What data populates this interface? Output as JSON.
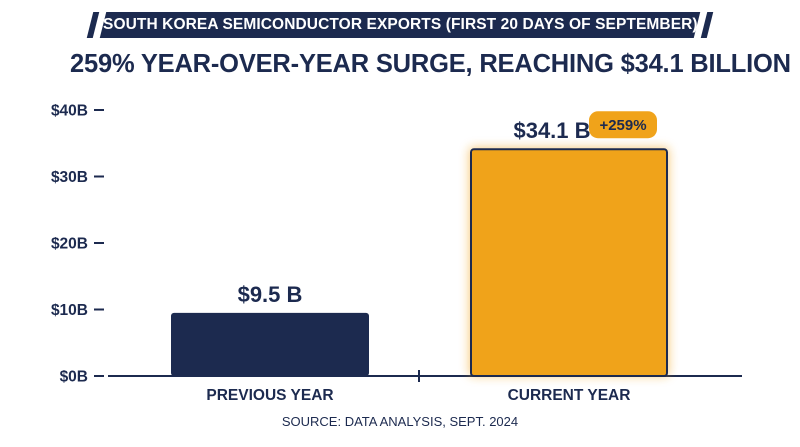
{
  "title": "SOUTH KOREA SEMICONDUCTOR EXPORTS (FIRST 20 DAYS OF SEPTEMBER)",
  "subtitle": "259% YEAR-OVER-YEAR SURGE, REACHING $34.1 BILLION",
  "source": "SOURCE: DATA ANALYSIS, SEPT. 2024",
  "colors": {
    "navy": "#1c2a4f",
    "orange": "#f0a31a",
    "badge": "#f0a31a"
  },
  "icons": {
    "headline": "trend-up-arrow-icon"
  },
  "chart_data": {
    "type": "bar",
    "categories": [
      "PREVIOUS YEAR",
      "CURRENT YEAR"
    ],
    "values": [
      9.5,
      34.1
    ],
    "value_labels": [
      "$9.5 B",
      "$34.1 B"
    ],
    "bar_colors": [
      "#1c2a4f",
      "#f0a31a"
    ],
    "ylim": [
      0,
      40
    ],
    "yticks": [
      0,
      10,
      20,
      30,
      40
    ],
    "ytick_labels": [
      "$0B",
      "$10B",
      "$20B",
      "$30B",
      "$40B"
    ],
    "annotations": [
      {
        "category": "CURRENT YEAR",
        "text": "+259%"
      }
    ],
    "grid": false,
    "legend": "none"
  }
}
